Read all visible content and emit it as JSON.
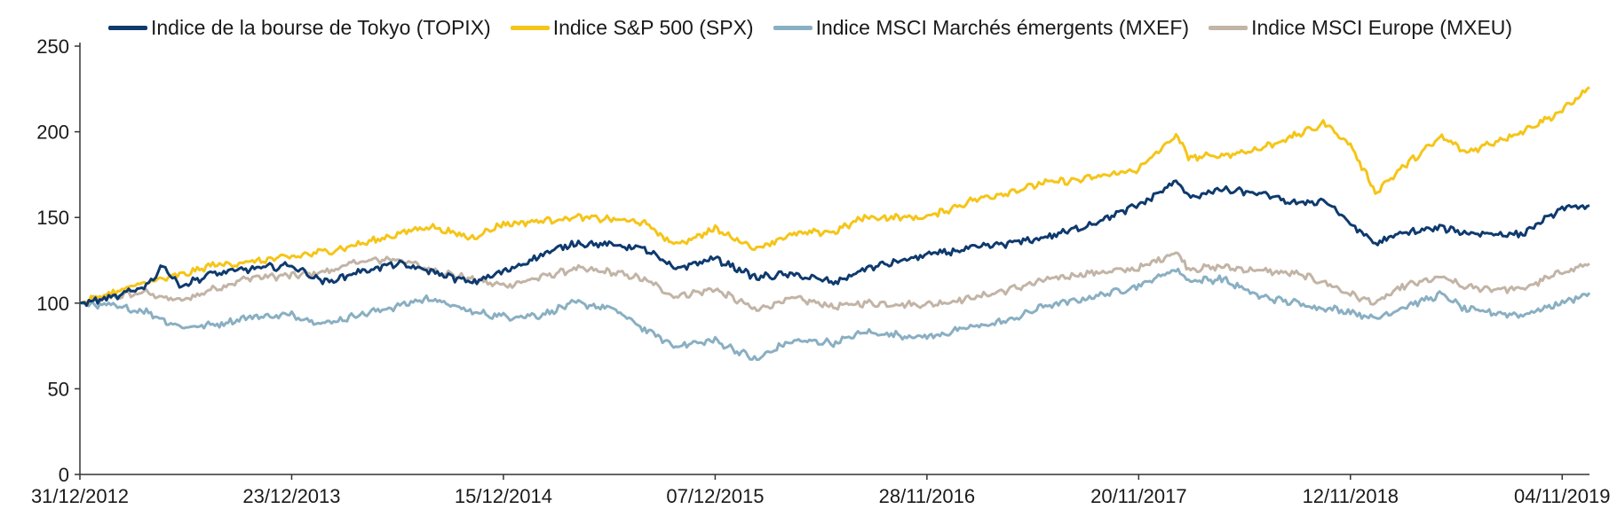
{
  "chart_data": {
    "type": "line",
    "title": "",
    "xlabel": "",
    "ylabel": "",
    "ylim": [
      0,
      250
    ],
    "y_ticks": [
      0,
      50,
      100,
      150,
      200,
      250
    ],
    "x_range": [
      "2012-12-31",
      "2019-12-20"
    ],
    "x_ticks": [
      "31/12/2012",
      "23/12/2013",
      "15/12/2014",
      "07/12/2015",
      "28/11/2016",
      "20/11/2017",
      "12/11/2018",
      "04/11/2019"
    ],
    "x_tick_dates": [
      "2012-12-31",
      "2013-12-23",
      "2014-12-15",
      "2015-12-07",
      "2016-11-28",
      "2017-11-20",
      "2018-11-12",
      "2019-11-04"
    ],
    "grid": false,
    "legend_position": "top",
    "series": [
      {
        "name": "Indice de la bourse de Tokyo (TOPIX)",
        "color": "#0e3a6e",
        "x": [
          "2012-12-31",
          "2013-02-25",
          "2013-04-22",
          "2013-05-20",
          "2013-06-17",
          "2013-08-12",
          "2013-10-14",
          "2013-12-23",
          "2014-02-17",
          "2014-04-14",
          "2014-06-16",
          "2014-08-11",
          "2014-10-20",
          "2014-12-15",
          "2015-02-16",
          "2015-04-13",
          "2015-06-15",
          "2015-08-10",
          "2015-09-28",
          "2015-12-07",
          "2016-02-15",
          "2016-04-11",
          "2016-06-27",
          "2016-08-15",
          "2016-11-28",
          "2017-02-13",
          "2017-04-17",
          "2017-06-12",
          "2017-08-14",
          "2017-11-20",
          "2017-12-04",
          "2018-01-22",
          "2018-02-12",
          "2018-04-09",
          "2018-06-11",
          "2018-08-13",
          "2018-10-01",
          "2018-11-12",
          "2018-12-24",
          "2019-02-11",
          "2019-04-15",
          "2019-05-27",
          "2019-08-26",
          "2019-11-04",
          "2019-12-20"
        ],
        "values": [
          100,
          103,
          110,
          122,
          110,
          117,
          120,
          122,
          112,
          118,
          123,
          119,
          112,
          118,
          128,
          135,
          134,
          132,
          120,
          126,
          115,
          117,
          112,
          120,
          128,
          132,
          135,
          138,
          144,
          157,
          160,
          171,
          162,
          166,
          164,
          158,
          160,
          146,
          135,
          141,
          144,
          141,
          140,
          155,
          157
        ]
      },
      {
        "name": "Indice S&P 500 (SPX)",
        "color": "#f5c518",
        "x": [
          "2012-12-31",
          "2013-02-25",
          "2013-04-22",
          "2013-06-17",
          "2013-08-12",
          "2013-10-14",
          "2013-12-23",
          "2014-02-17",
          "2014-04-14",
          "2014-06-16",
          "2014-08-11",
          "2014-10-20",
          "2014-12-15",
          "2015-02-16",
          "2015-04-13",
          "2015-06-15",
          "2015-08-10",
          "2015-09-28",
          "2015-12-07",
          "2016-02-15",
          "2016-04-11",
          "2016-06-27",
          "2016-08-15",
          "2016-11-28",
          "2017-02-13",
          "2017-04-17",
          "2017-06-12",
          "2017-08-14",
          "2017-11-20",
          "2018-01-22",
          "2018-02-12",
          "2018-04-09",
          "2018-06-11",
          "2018-08-13",
          "2018-10-01",
          "2018-11-12",
          "2018-12-24",
          "2019-02-11",
          "2019-04-15",
          "2019-05-27",
          "2019-08-26",
          "2019-11-04",
          "2019-12-20"
        ],
        "values": [
          100,
          106,
          112,
          116,
          122,
          124,
          127,
          130,
          134,
          140,
          145,
          138,
          146,
          148,
          150,
          149,
          147,
          134,
          143,
          132,
          140,
          142,
          150,
          150,
          160,
          165,
          170,
          172,
          178,
          198,
          185,
          186,
          190,
          198,
          205,
          192,
          165,
          180,
          197,
          188,
          200,
          212,
          226
        ]
      },
      {
        "name": "Indice MSCI Marchés émergents (MXEF)",
        "color": "#89afc2",
        "x": [
          "2012-12-31",
          "2013-02-25",
          "2013-04-22",
          "2013-06-17",
          "2013-08-12",
          "2013-10-14",
          "2013-12-23",
          "2014-02-17",
          "2014-04-14",
          "2014-06-16",
          "2014-08-11",
          "2014-10-20",
          "2014-12-15",
          "2015-02-16",
          "2015-04-13",
          "2015-06-15",
          "2015-08-10",
          "2015-09-28",
          "2015-12-07",
          "2016-02-15",
          "2016-04-11",
          "2016-06-27",
          "2016-08-15",
          "2016-11-28",
          "2017-02-13",
          "2017-04-17",
          "2017-06-12",
          "2017-08-14",
          "2017-11-20",
          "2018-01-22",
          "2018-02-12",
          "2018-04-09",
          "2018-06-11",
          "2018-08-13",
          "2018-10-01",
          "2018-11-12",
          "2018-12-24",
          "2019-02-11",
          "2019-04-15",
          "2019-05-27",
          "2019-08-26",
          "2019-11-04",
          "2019-12-20"
        ],
        "values": [
          100,
          98,
          95,
          86,
          87,
          92,
          93,
          88,
          93,
          98,
          103,
          95,
          92,
          93,
          100,
          97,
          85,
          75,
          78,
          67,
          78,
          77,
          83,
          80,
          86,
          90,
          98,
          102,
          110,
          120,
          113,
          114,
          104,
          100,
          97,
          95,
          91,
          98,
          105,
          96,
          93,
          100,
          106
        ]
      },
      {
        "name": "Indice MSCI Europe (MXEU)",
        "color": "#c2b4a6",
        "x": [
          "2012-12-31",
          "2013-02-25",
          "2013-04-22",
          "2013-06-17",
          "2013-08-12",
          "2013-10-14",
          "2013-12-23",
          "2014-02-17",
          "2014-04-14",
          "2014-06-16",
          "2014-08-11",
          "2014-10-20",
          "2014-12-15",
          "2015-02-16",
          "2015-04-13",
          "2015-06-15",
          "2015-08-10",
          "2015-09-28",
          "2015-12-07",
          "2016-02-15",
          "2016-04-11",
          "2016-06-27",
          "2016-08-15",
          "2016-11-28",
          "2017-02-13",
          "2017-04-17",
          "2017-06-12",
          "2017-08-14",
          "2017-11-20",
          "2018-01-22",
          "2018-02-12",
          "2018-04-09",
          "2018-06-11",
          "2018-08-13",
          "2018-10-01",
          "2018-11-12",
          "2018-12-24",
          "2019-02-11",
          "2019-04-15",
          "2019-05-27",
          "2019-08-26",
          "2019-11-04",
          "2019-12-20"
        ],
        "values": [
          100,
          104,
          106,
          101,
          108,
          115,
          116,
          118,
          124,
          126,
          120,
          114,
          110,
          115,
          120,
          118,
          114,
          104,
          108,
          96,
          103,
          98,
          100,
          99,
          103,
          108,
          113,
          117,
          120,
          130,
          120,
          121,
          119,
          117,
          112,
          105,
          100,
          110,
          115,
          109,
          108,
          118,
          123
        ]
      }
    ]
  }
}
